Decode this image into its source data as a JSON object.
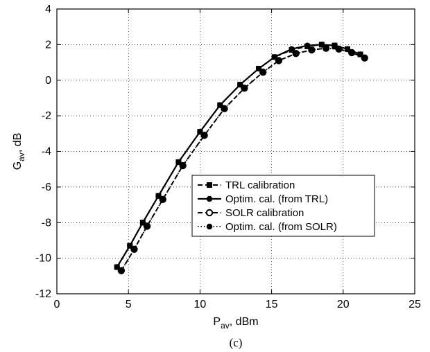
{
  "chart_data": {
    "type": "line",
    "xlim": [
      0,
      25
    ],
    "ylim": [
      -12,
      4
    ],
    "xticks": [
      "0",
      "5",
      "10",
      "15",
      "20",
      "25"
    ],
    "yticks": [
      "4",
      "2",
      "0",
      "-2",
      "-4",
      "-6",
      "-8",
      "-10",
      "-12"
    ],
    "xlabel_main": "P",
    "xlabel_sub": "av",
    "xlabel_rest": ", dBm",
    "ylabel_main": "G",
    "ylabel_sub": "av",
    "ylabel_rest": ", dB",
    "caption": "(c)",
    "grid": true,
    "legend_position": "lower-right",
    "series": [
      {
        "name": "TRL calibration",
        "style": "dashed",
        "marker": "square",
        "x": [
          4.2,
          5.1,
          6.0,
          7.1,
          8.5,
          10.0,
          11.4,
          12.8,
          14.1,
          15.2,
          16.4,
          17.5,
          18.5,
          19.4,
          20.3,
          21.2
        ],
        "y": [
          -10.5,
          -9.3,
          -8.0,
          -6.5,
          -4.6,
          -2.9,
          -1.4,
          -0.25,
          0.65,
          1.3,
          1.7,
          1.9,
          2.0,
          1.95,
          1.75,
          1.45
        ]
      },
      {
        "name": "Optim. cal. (from TRL)",
        "style": "solid",
        "marker": "circle",
        "x": [
          4.2,
          5.1,
          6.0,
          7.1,
          8.5,
          10.0,
          11.4,
          12.8,
          14.1,
          15.2,
          16.4,
          17.5,
          18.5,
          19.4,
          20.3,
          21.2
        ],
        "y": [
          -10.5,
          -9.3,
          -8.0,
          -6.5,
          -4.6,
          -2.9,
          -1.4,
          -0.25,
          0.65,
          1.3,
          1.75,
          1.95,
          2.0,
          1.95,
          1.75,
          1.45
        ]
      },
      {
        "name": "SOLR calibration",
        "style": "dashed",
        "marker": "circle-open",
        "x": [
          4.5,
          5.4,
          6.3,
          7.4,
          8.8,
          10.3,
          11.7,
          13.1,
          14.4,
          15.5,
          16.7,
          17.8,
          18.8,
          19.7,
          20.6,
          21.5
        ],
        "y": [
          -10.7,
          -9.5,
          -8.2,
          -6.7,
          -4.8,
          -3.1,
          -1.6,
          -0.45,
          0.45,
          1.1,
          1.5,
          1.7,
          1.8,
          1.75,
          1.55,
          1.25
        ]
      },
      {
        "name": "Optim. cal. (from SOLR)",
        "style": "dotted",
        "marker": "circle",
        "x": [
          4.5,
          5.4,
          6.3,
          7.4,
          8.8,
          10.3,
          11.7,
          13.1,
          14.4,
          15.5,
          16.7,
          17.8,
          18.8,
          19.7,
          20.6,
          21.5
        ],
        "y": [
          -10.7,
          -9.5,
          -8.2,
          -6.7,
          -4.8,
          -3.1,
          -1.6,
          -0.45,
          0.45,
          1.1,
          1.5,
          1.7,
          1.8,
          1.75,
          1.55,
          1.25
        ]
      }
    ]
  }
}
